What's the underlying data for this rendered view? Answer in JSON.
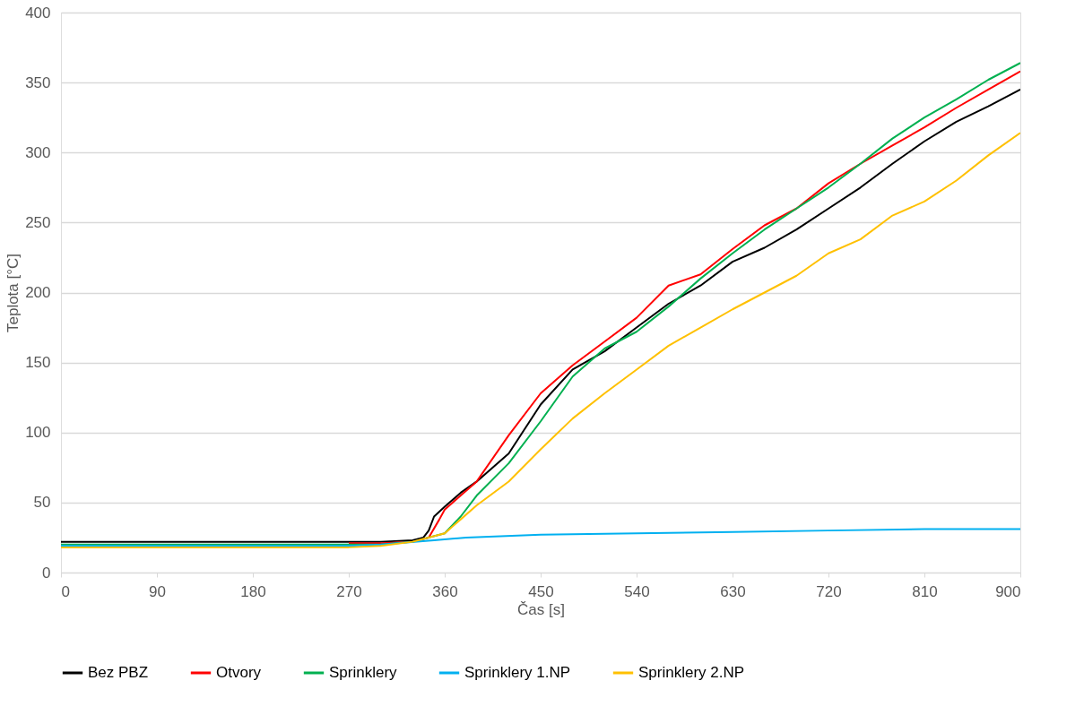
{
  "chart_data": {
    "type": "line",
    "xlabel": "Čas [s]",
    "ylabel": "Teplota [°C]",
    "xlim": [
      0,
      900
    ],
    "xticks": [
      0,
      90,
      180,
      270,
      360,
      450,
      540,
      630,
      720,
      810,
      900
    ],
    "ylim": [
      0,
      400
    ],
    "yticks": [
      0,
      50,
      100,
      150,
      200,
      250,
      300,
      350,
      400
    ],
    "grid": "y",
    "legend": "bottom",
    "marker": "none",
    "line_style": "solid",
    "series": [
      {
        "name": "Bez PBZ",
        "color": "#000000",
        "x": [
          0,
          90,
          180,
          270,
          300,
          330,
          340,
          345,
          350,
          360,
          375,
          390,
          420,
          450,
          480,
          510,
          540,
          570,
          600,
          630,
          660,
          690,
          720,
          750,
          780,
          810,
          840,
          870,
          900
        ],
        "values": [
          22,
          22,
          22,
          22,
          22,
          23,
          25,
          30,
          40,
          47,
          57,
          65,
          85,
          120,
          145,
          158,
          175,
          192,
          205,
          222,
          232,
          245,
          260,
          275,
          292,
          308,
          322,
          333,
          345
        ]
      },
      {
        "name": "Otvory",
        "color": "#ff0000",
        "x": [
          270,
          300,
          330,
          345,
          355,
          360,
          375,
          390,
          420,
          450,
          480,
          510,
          540,
          570,
          600,
          630,
          660,
          690,
          720,
          750,
          780,
          810,
          840,
          870,
          900
        ],
        "values": [
          21,
          21,
          22,
          25,
          38,
          45,
          55,
          65,
          98,
          128,
          148,
          165,
          182,
          205,
          213,
          231,
          248,
          260,
          278,
          292,
          305,
          318,
          332,
          345,
          358
        ]
      },
      {
        "name": "Sprinklery",
        "color": "#00b050",
        "x": [
          0,
          90,
          180,
          270,
          300,
          330,
          360,
          375,
          390,
          420,
          450,
          480,
          510,
          540,
          570,
          600,
          630,
          660,
          690,
          720,
          750,
          780,
          810,
          840,
          870,
          900
        ],
        "values": [
          20,
          20,
          20,
          20,
          20,
          22,
          28,
          40,
          55,
          78,
          108,
          140,
          160,
          172,
          190,
          210,
          228,
          245,
          260,
          275,
          292,
          310,
          325,
          338,
          352,
          364
        ]
      },
      {
        "name": "Sprinklery 1.NP",
        "color": "#00b0f0",
        "x": [
          0,
          90,
          180,
          270,
          300,
          350,
          380,
          450,
          540,
          630,
          720,
          810,
          900
        ],
        "values": [
          19,
          19,
          19,
          19,
          20,
          23,
          25,
          27,
          28,
          29,
          30,
          31,
          31
        ]
      },
      {
        "name": "Sprinklery 2.NP",
        "color": "#ffc000",
        "x": [
          0,
          90,
          180,
          270,
          300,
          330,
          360,
          375,
          390,
          420,
          450,
          480,
          510,
          540,
          570,
          600,
          630,
          660,
          690,
          720,
          750,
          780,
          810,
          840,
          870,
          900
        ],
        "values": [
          18,
          18,
          18,
          18,
          19,
          22,
          28,
          38,
          48,
          65,
          88,
          110,
          128,
          145,
          162,
          175,
          188,
          200,
          212,
          228,
          238,
          255,
          265,
          280,
          298,
          314
        ]
      }
    ]
  }
}
